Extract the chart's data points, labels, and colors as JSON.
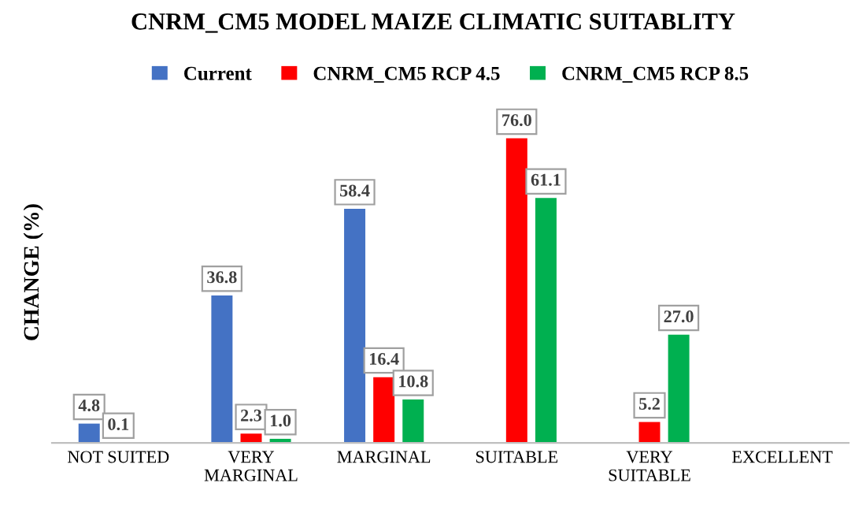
{
  "chart_data": {
    "type": "bar",
    "title": "CNRM_CM5 MODEL MAIZE CLIMATIC SUITABLITY",
    "ylabel": "CHANGE (%)",
    "categories": [
      "NOT SUITED",
      "VERY\nMARGINAL",
      "MARGINAL",
      "SUITABLE",
      "VERY\nSUITABLE",
      "EXCELLENT"
    ],
    "series": [
      {
        "name": "Current",
        "color": "#4472c4",
        "values": [
          4.8,
          36.8,
          58.4,
          null,
          null,
          null
        ],
        "value_labels": [
          "4.8",
          "36.8",
          "58.4",
          null,
          null,
          null
        ]
      },
      {
        "name": "CNRM_CM5 RCP 4.5",
        "color": "#ff0000",
        "values": [
          0.1,
          2.3,
          16.4,
          76.0,
          5.2,
          null
        ],
        "value_labels": [
          "0.1",
          "2.3",
          "16.4",
          "76.0",
          "5.2",
          null
        ]
      },
      {
        "name": "CNRM_CM5 RCP 8.5",
        "color": "#00b050",
        "values": [
          null,
          1.0,
          10.8,
          61.1,
          27.0,
          null
        ],
        "value_labels": [
          null,
          "1.0",
          "10.8",
          "61.1",
          "27.0",
          null
        ]
      }
    ],
    "legend": "top",
    "tick_labels": "x"
  }
}
